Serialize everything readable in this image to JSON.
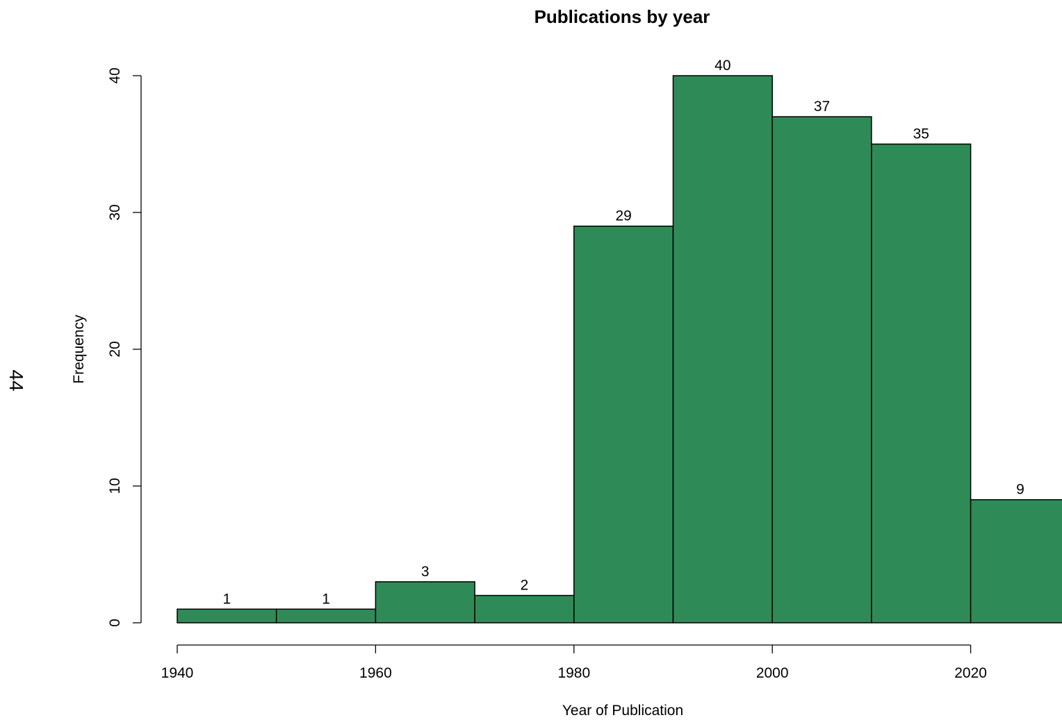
{
  "page_number": "44",
  "colors": {
    "bar_fill": "#2e8b57",
    "bar_outline": "#000000"
  },
  "chart_data": {
    "type": "bar",
    "title": "Publications by year",
    "xlabel": "Year of Publication",
    "ylabel": "Frequency",
    "bins": [
      {
        "from": 1940,
        "to": 1950,
        "count": 1
      },
      {
        "from": 1950,
        "to": 1960,
        "count": 1
      },
      {
        "from": 1960,
        "to": 1970,
        "count": 3
      },
      {
        "from": 1970,
        "to": 1980,
        "count": 2
      },
      {
        "from": 1980,
        "to": 1990,
        "count": 29
      },
      {
        "from": 1990,
        "to": 2000,
        "count": 40
      },
      {
        "from": 2000,
        "to": 2010,
        "count": 37
      },
      {
        "from": 2010,
        "to": 2020,
        "count": 35
      },
      {
        "from": 2020,
        "to": 2030,
        "count": 9
      }
    ],
    "values": [
      1,
      1,
      3,
      2,
      29,
      40,
      37,
      35,
      9
    ],
    "value_labels": [
      "1",
      "1",
      "3",
      "2",
      "29",
      "40",
      "37",
      "35",
      "9"
    ],
    "xlim": [
      1940,
      2030
    ],
    "ylim": [
      0,
      40
    ],
    "x_ticks": [
      1940,
      1960,
      1980,
      2000,
      2020
    ],
    "x_tick_labels": [
      "1940",
      "1960",
      "1980",
      "2000",
      "2020"
    ],
    "y_ticks": [
      0,
      10,
      20,
      30,
      40
    ],
    "y_tick_labels": [
      "0",
      "10",
      "20",
      "30",
      "40"
    ],
    "grid": false,
    "legend": "none"
  }
}
